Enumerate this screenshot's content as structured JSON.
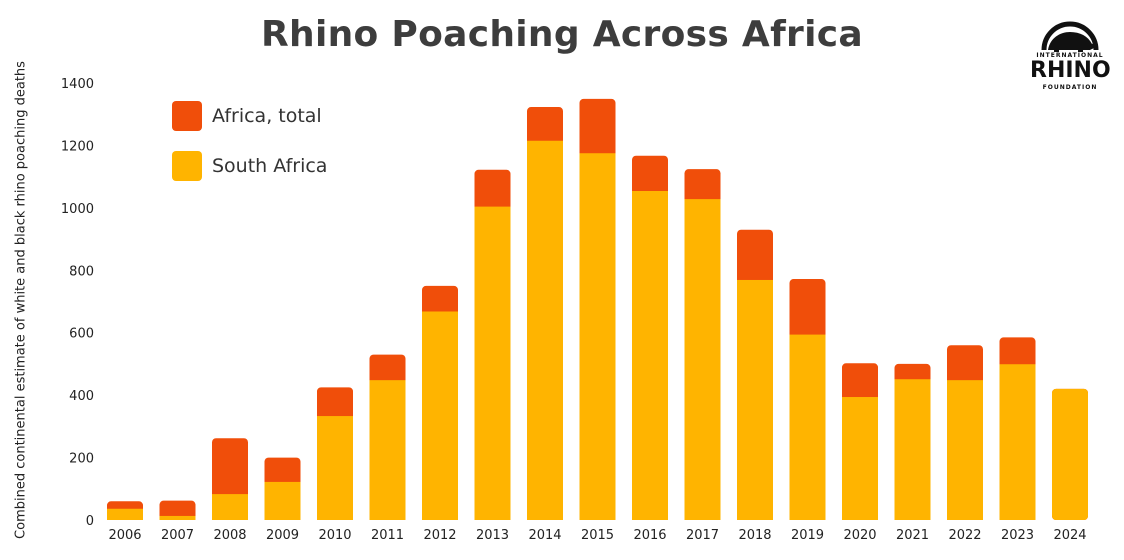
{
  "title": "Rhino Poaching Across Africa",
  "logo": {
    "top_text": "INTERNATIONAL",
    "main_text": "RHINO",
    "bottom_text": "FOUNDATION"
  },
  "colors": {
    "africa_total": "#f04e0a",
    "south_africa": "#ffb400",
    "title": "#3d3d3d"
  },
  "chart_data": {
    "type": "bar",
    "title": "Rhino Poaching Across Africa",
    "xlabel": "",
    "ylabel": "Combined continental estimate of white and black rhino poaching deaths",
    "ylim": [
      0,
      1400
    ],
    "yticks": [
      0,
      200,
      400,
      600,
      800,
      1000,
      1200,
      1400
    ],
    "grid": false,
    "legend_position": "top-left",
    "stacked_overlay": true,
    "categories": [
      "2006",
      "2007",
      "2008",
      "2009",
      "2010",
      "2011",
      "2012",
      "2013",
      "2014",
      "2015",
      "2016",
      "2017",
      "2018",
      "2019",
      "2020",
      "2021",
      "2022",
      "2023",
      "2024"
    ],
    "series": [
      {
        "name": "Africa, total",
        "values": [
          60,
          62,
          262,
          200,
          425,
          530,
          750,
          1122,
          1323,
          1349,
          1167,
          1124,
          930,
          772,
          502,
          500,
          560,
          585,
          420
        ]
      },
      {
        "name": "South Africa",
        "values": [
          36,
          13,
          83,
          122,
          333,
          448,
          668,
          1004,
          1215,
          1175,
          1054,
          1028,
          769,
          594,
          394,
          451,
          448,
          499,
          420
        ]
      }
    ]
  }
}
